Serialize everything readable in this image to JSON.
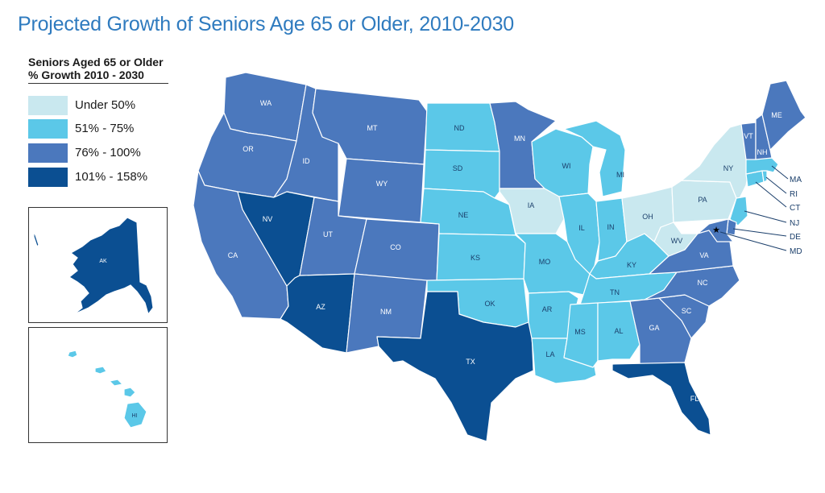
{
  "title": "Projected Growth of Seniors Age 65 or Older, 2010-2030",
  "legend": {
    "title_line1": "Seniors Aged 65 or Older",
    "title_line2": "% Growth 2010 - 2030",
    "items": [
      {
        "label": "Under 50%",
        "color": "#c9e8ef"
      },
      {
        "label": "51% - 75%",
        "color": "#5bc8e8"
      },
      {
        "label": "76% - 100%",
        "color": "#4b78bd"
      },
      {
        "label": "101% - 158%",
        "color": "#0b4f92"
      }
    ]
  },
  "map": {
    "border_color": "#ffffff",
    "states_by_category": {
      "under_50": [
        "IA",
        "OH",
        "PA",
        "NY",
        "WV"
      ],
      "51_75": [
        "ND",
        "SD",
        "NE",
        "KS",
        "OK",
        "MO",
        "AR",
        "LA",
        "MS",
        "AL",
        "TN",
        "KY",
        "IN",
        "IL",
        "WI",
        "MI",
        "NJ",
        "CT",
        "RI",
        "MA",
        "HI"
      ],
      "76_100": [
        "WA",
        "OR",
        "CA",
        "ID",
        "MT",
        "WY",
        "UT",
        "CO",
        "NM",
        "MN",
        "VA",
        "NC",
        "SC",
        "GA",
        "ME",
        "NH",
        "VT",
        "MD",
        "DE"
      ],
      "101_158": [
        "NV",
        "AZ",
        "TX",
        "FL",
        "AK"
      ]
    },
    "state_labels": {
      "WA": "WA",
      "OR": "OR",
      "CA": "CA",
      "ID": "ID",
      "NV": "NV",
      "MT": "MT",
      "WY": "WY",
      "UT": "UT",
      "AZ": "AZ",
      "CO": "CO",
      "NM": "NM",
      "ND": "ND",
      "SD": "SD",
      "NE": "NE",
      "KS": "KS",
      "OK": "OK",
      "TX": "TX",
      "MN": "MN",
      "IA": "IA",
      "MO": "MO",
      "AR": "AR",
      "LA": "LA",
      "WI": "WI",
      "IL": "IL",
      "MS": "MS",
      "MI": "MI",
      "IN": "IN",
      "KY": "KY",
      "TN": "TN",
      "AL": "AL",
      "OH": "OH",
      "GA": "GA",
      "FL": "FL",
      "SC": "SC",
      "NC": "NC",
      "VA": "VA",
      "WV": "WV",
      "PA": "PA",
      "NY": "NY",
      "VT": "VT",
      "NH": "NH",
      "ME": "ME",
      "AK": "AK",
      "HI": "HI"
    },
    "callouts": {
      "MA": "MA",
      "RI": "RI",
      "CT": "CT",
      "NJ": "NJ",
      "DE": "DE",
      "MD": "MD"
    },
    "capital_marker": "★"
  }
}
